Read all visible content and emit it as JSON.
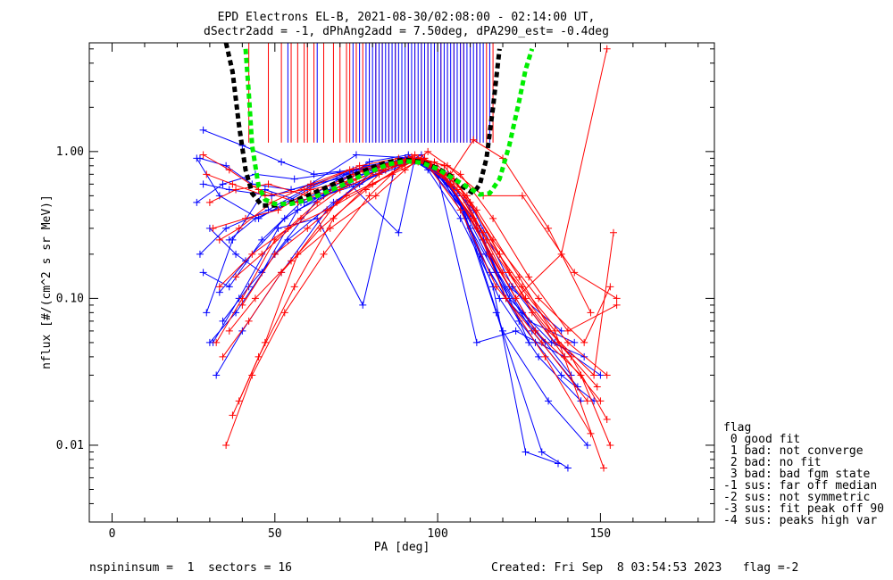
{
  "chart_data": {
    "type": "line",
    "title_line1": "EPD Electrons EL-B, 2021-08-30/02:08:00 - 02:14:00 UT,",
    "title_line2": "dSectr2add = -1, dPhAng2add = 7.50deg, dPA290_est=  -0.4deg",
    "xlabel": "PA [deg]",
    "ylabel": "nflux [#/(cm^2 s sr MeV)]",
    "xlim": [
      -7,
      185
    ],
    "ylim": [
      0.003,
      5.5
    ],
    "yscale": "log",
    "xticks": [
      0,
      50,
      100,
      150
    ],
    "xtick_labels": [
      "0",
      "50",
      "100",
      "150"
    ],
    "yticks": [
      0.01,
      0.1,
      1.0
    ],
    "ytick_labels": [
      "0.01",
      "0.10",
      "1.00"
    ],
    "colors": {
      "blue": "#0000ff",
      "red": "#ff0000",
      "black": "#000000",
      "green": "#00ee00"
    },
    "legend": {
      "title": "flag",
      "entries": [
        " 0 good fit",
        " 1 bad: not converge",
        " 2 bad: no fit",
        " 3 bad: bad fgm state",
        "-1 sus: far off median",
        "-2 sus: not symmetric",
        "-3 sus: fit peak off 90",
        "-4 sus: peaks high var"
      ]
    },
    "footer": {
      "left": "nspininsum =  1  sectors = 16",
      "right": "Created: Fri Sep  8 03:54:53 2023   flag =-2"
    },
    "fit_curves": [
      {
        "color": "black",
        "style": "dashed",
        "x": [
          35,
          37,
          39,
          41,
          43,
          46,
          50,
          55,
          60,
          65,
          70,
          75,
          80,
          85,
          90,
          95,
          100,
          105,
          108,
          111,
          113,
          115,
          117,
          119
        ],
        "y": [
          5.5,
          3.5,
          1.5,
          0.75,
          0.52,
          0.43,
          0.43,
          0.45,
          0.5,
          0.56,
          0.63,
          0.7,
          0.78,
          0.85,
          0.88,
          0.85,
          0.77,
          0.66,
          0.57,
          0.52,
          0.6,
          0.9,
          2.0,
          5.0
        ]
      },
      {
        "color": "green",
        "style": "dashed",
        "x": [
          41,
          42,
          43,
          45,
          47,
          50,
          55,
          60,
          65,
          70,
          75,
          80,
          85,
          90,
          95,
          100,
          105,
          110,
          113,
          116,
          119,
          122,
          125,
          127,
          129
        ],
        "y": [
          5.0,
          2.5,
          1.1,
          0.58,
          0.47,
          0.44,
          0.44,
          0.47,
          0.52,
          0.58,
          0.66,
          0.74,
          0.82,
          0.86,
          0.84,
          0.76,
          0.65,
          0.56,
          0.51,
          0.52,
          0.65,
          1.1,
          2.2,
          3.6,
          5.0
        ]
      }
    ],
    "spikes": {
      "y_base": 1.15,
      "blue_x": [
        54,
        63,
        74,
        76,
        78,
        79,
        80,
        81,
        82,
        83,
        84,
        85,
        86,
        87,
        88,
        89,
        90,
        91,
        92,
        93,
        94,
        95,
        96,
        97,
        98,
        99,
        100,
        101,
        102,
        103,
        104,
        105,
        106,
        107,
        108,
        109,
        110,
        111,
        112,
        113,
        114,
        116
      ],
      "red_x": [
        42,
        48,
        52,
        55,
        57,
        59,
        60,
        62,
        65,
        68,
        70,
        72,
        73,
        75,
        77,
        79,
        81,
        83,
        85,
        87,
        89,
        91,
        93,
        95,
        97,
        99,
        101,
        103,
        105,
        107,
        108,
        110,
        112,
        113,
        115,
        117
      ]
    },
    "series": [
      {
        "name": "",
        "color": "blue",
        "x": [
          26,
          33,
          45,
          60,
          75,
          90,
          93,
          100,
          110,
          122,
          135,
          145
        ],
        "y": [
          0.9,
          0.5,
          0.35,
          0.55,
          0.75,
          0.85,
          0.86,
          0.75,
          0.3,
          0.1,
          0.05,
          0.04
        ]
      },
      {
        "name": "",
        "color": "blue",
        "x": [
          27,
          35,
          48,
          62,
          78,
          92,
          95,
          103,
          113,
          125,
          138,
          148
        ],
        "y": [
          0.2,
          0.3,
          0.4,
          0.6,
          0.8,
          0.9,
          0.88,
          0.7,
          0.2,
          0.07,
          0.03,
          0.02
        ]
      },
      {
        "name": "",
        "color": "blue",
        "x": [
          28,
          36,
          46,
          58,
          72,
          88,
          94,
          104,
          116,
          130
        ],
        "y": [
          0.15,
          0.12,
          0.25,
          0.45,
          0.7,
          0.85,
          0.9,
          0.6,
          0.15,
          0.05
        ]
      },
      {
        "name": "",
        "color": "blue",
        "x": [
          30,
          38,
          50,
          64,
          80,
          90,
          96,
          106,
          118,
          132,
          140
        ],
        "y": [
          0.05,
          0.08,
          0.2,
          0.5,
          0.75,
          0.9,
          0.86,
          0.5,
          0.08,
          0.009,
          0.007
        ]
      },
      {
        "name": "",
        "color": "blue",
        "x": [
          32,
          40,
          52,
          66,
          82,
          91,
          98,
          108,
          120,
          134,
          146
        ],
        "y": [
          0.03,
          0.06,
          0.15,
          0.4,
          0.8,
          0.92,
          0.8,
          0.4,
          0.06,
          0.02,
          0.01
        ]
      },
      {
        "name": "",
        "color": "blue",
        "x": [
          26,
          34,
          44,
          56,
          70,
          86,
          92,
          102,
          114,
          128,
          142
        ],
        "y": [
          0.45,
          0.6,
          0.7,
          0.65,
          0.72,
          0.85,
          0.88,
          0.65,
          0.25,
          0.07,
          0.05
        ]
      },
      {
        "name": "",
        "color": "blue",
        "x": [
          29,
          37,
          47,
          59,
          74,
          89,
          95,
          105,
          117,
          127,
          137
        ],
        "y": [
          0.08,
          0.25,
          0.55,
          0.45,
          0.6,
          0.8,
          0.95,
          0.55,
          0.12,
          0.009,
          0.0075
        ]
      },
      {
        "name": "",
        "color": "blue",
        "x": [
          28,
          36,
          49,
          61,
          75,
          93,
          100,
          112,
          124,
          139
        ],
        "y": [
          0.6,
          0.55,
          0.5,
          0.6,
          0.95,
          0.9,
          0.7,
          0.05,
          0.06,
          0.04
        ]
      },
      {
        "name": "",
        "color": "blue",
        "x": [
          31,
          39,
          51,
          63,
          77,
          87,
          94,
          104,
          115,
          126,
          141
        ],
        "y": [
          0.05,
          0.1,
          0.3,
          0.35,
          0.09,
          0.8,
          0.88,
          0.6,
          0.2,
          0.08,
          0.03
        ]
      },
      {
        "name": "",
        "color": "blue",
        "x": [
          33,
          41,
          53,
          67,
          79,
          91,
          97,
          107,
          119,
          131,
          144
        ],
        "y": [
          0.11,
          0.18,
          0.35,
          0.55,
          0.85,
          0.95,
          0.75,
          0.35,
          0.1,
          0.04,
          0.02
        ]
      },
      {
        "name": "",
        "color": "blue",
        "x": [
          27,
          35,
          43,
          55,
          69,
          84,
          92,
          101,
          111,
          123,
          136,
          150
        ],
        "y": [
          0.9,
          0.8,
          0.6,
          0.55,
          0.65,
          0.75,
          0.88,
          0.7,
          0.4,
          0.12,
          0.05,
          0.03
        ]
      },
      {
        "name": "",
        "color": "blue",
        "x": [
          30,
          38,
          46,
          57,
          73,
          88,
          93,
          103,
          113,
          121,
          133
        ],
        "y": [
          0.3,
          0.2,
          0.15,
          0.4,
          0.6,
          0.28,
          0.9,
          0.6,
          0.3,
          0.1,
          0.05
        ]
      },
      {
        "name": "",
        "color": "blue",
        "x": [
          34,
          42,
          54,
          68,
          81,
          90,
          99,
          109,
          118,
          129,
          143
        ],
        "y": [
          0.07,
          0.12,
          0.25,
          0.45,
          0.7,
          0.85,
          0.8,
          0.45,
          0.15,
          0.06,
          0.025
        ]
      },
      {
        "name": "",
        "color": "blue",
        "x": [
          28,
          40,
          52,
          62,
          74,
          86,
          95,
          106,
          116,
          128
        ],
        "y": [
          1.4,
          1.1,
          0.85,
          0.7,
          0.75,
          0.8,
          0.9,
          0.5,
          0.2,
          0.05
        ]
      },
      {
        "name": "",
        "color": "blue",
        "x": [
          36,
          44,
          55,
          65,
          76,
          89,
          96,
          110,
          122,
          138
        ],
        "y": [
          0.25,
          0.35,
          0.45,
          0.5,
          0.6,
          0.85,
          0.85,
          0.35,
          0.12,
          0.06
        ]
      },
      {
        "name": "",
        "color": "red",
        "x": [
          30,
          38,
          48,
          60,
          74,
          88,
          94,
          104,
          116,
          130,
          144,
          153
        ],
        "y": [
          0.45,
          0.55,
          0.6,
          0.5,
          0.7,
          0.85,
          0.88,
          0.6,
          0.2,
          0.06,
          0.03,
          0.01
        ]
      },
      {
        "name": "",
        "color": "red",
        "x": [
          35,
          43,
          53,
          65,
          79,
          91,
          97,
          107,
          118,
          132,
          146
        ],
        "y": [
          0.01,
          0.03,
          0.08,
          0.2,
          0.5,
          0.9,
          0.8,
          0.4,
          0.12,
          0.05,
          0.02
        ]
      },
      {
        "name": "",
        "color": "red",
        "x": [
          32,
          40,
          50,
          63,
          77,
          90,
          98,
          108,
          120,
          134,
          148,
          154
        ],
        "y": [
          0.05,
          0.1,
          0.25,
          0.45,
          0.75,
          0.88,
          0.82,
          0.5,
          0.15,
          0.06,
          0.03,
          0.28
        ]
      },
      {
        "name": "",
        "color": "red",
        "x": [
          37,
          45,
          56,
          68,
          82,
          93,
          100,
          110,
          122,
          136,
          151
        ],
        "y": [
          0.016,
          0.04,
          0.12,
          0.35,
          0.7,
          0.95,
          0.75,
          0.45,
          0.15,
          0.06,
          0.007
        ]
      },
      {
        "name": "",
        "color": "red",
        "x": [
          29,
          37,
          47,
          59,
          73,
          87,
          95,
          105,
          117,
          131,
          145,
          153
        ],
        "y": [
          0.7,
          0.6,
          0.5,
          0.55,
          0.75,
          0.85,
          0.9,
          0.65,
          0.25,
          0.1,
          0.05,
          0.12
        ]
      },
      {
        "name": "",
        "color": "red",
        "x": [
          34,
          42,
          52,
          64,
          78,
          89,
          96,
          106,
          115,
          127,
          141,
          152
        ],
        "y": [
          0.04,
          0.07,
          0.15,
          0.3,
          0.55,
          0.8,
          0.9,
          0.55,
          0.25,
          0.1,
          0.04,
          0.015
        ]
      },
      {
        "name": "",
        "color": "red",
        "x": [
          39,
          47,
          57,
          69,
          83,
          94,
          101,
          111,
          121,
          133,
          147
        ],
        "y": [
          0.02,
          0.05,
          0.2,
          0.45,
          0.8,
          0.9,
          0.7,
          0.35,
          0.1,
          0.04,
          0.012
        ]
      },
      {
        "name": "",
        "color": "red",
        "x": [
          31,
          41,
          51,
          61,
          75,
          86,
          92,
          102,
          112,
          124,
          138,
          152
        ],
        "y": [
          0.3,
          0.35,
          0.4,
          0.55,
          0.65,
          0.8,
          0.92,
          0.7,
          0.3,
          0.1,
          0.2,
          5.0
        ]
      },
      {
        "name": "",
        "color": "red",
        "x": [
          33,
          43,
          54,
          66,
          80,
          92,
          99,
          109,
          119,
          129,
          139,
          150
        ],
        "y": [
          0.12,
          0.2,
          0.3,
          0.4,
          0.6,
          0.85,
          0.85,
          0.5,
          0.2,
          0.08,
          0.04,
          0.02
        ]
      },
      {
        "name": "",
        "color": "red",
        "x": [
          36,
          44,
          55,
          67,
          81,
          90,
          97,
          107,
          117,
          128,
          140,
          155
        ],
        "y": [
          0.06,
          0.1,
          0.18,
          0.3,
          0.5,
          0.75,
          1.0,
          0.7,
          0.35,
          0.14,
          0.06,
          0.09
        ]
      },
      {
        "name": "",
        "color": "red",
        "x": [
          38,
          46,
          58,
          70,
          84,
          95,
          102,
          112,
          125,
          137,
          149
        ],
        "y": [
          0.14,
          0.2,
          0.35,
          0.55,
          0.75,
          0.9,
          0.8,
          0.4,
          0.14,
          0.05,
          0.025
        ]
      },
      {
        "name": "",
        "color": "red",
        "x": [
          28,
          36,
          45,
          57,
          72,
          85,
          93,
          103,
          114,
          126,
          142,
          155
        ],
        "y": [
          0.95,
          0.75,
          0.55,
          0.45,
          0.6,
          0.8,
          0.9,
          0.8,
          0.5,
          0.5,
          0.15,
          0.1
        ]
      },
      {
        "name": "",
        "color": "red",
        "x": [
          40,
          50,
          60,
          72,
          86,
          96,
          104,
          114,
          126,
          140,
          152
        ],
        "y": [
          0.09,
          0.2,
          0.3,
          0.5,
          0.7,
          0.9,
          0.65,
          0.28,
          0.12,
          0.05,
          0.03
        ]
      },
      {
        "name": "",
        "color": "red",
        "x": [
          33,
          39,
          49,
          61,
          76,
          88,
          94,
          104,
          111,
          120,
          134,
          147
        ],
        "y": [
          0.25,
          0.3,
          0.45,
          0.6,
          0.8,
          0.9,
          0.85,
          0.7,
          1.2,
          0.9,
          0.3,
          0.08
        ]
      }
    ]
  }
}
